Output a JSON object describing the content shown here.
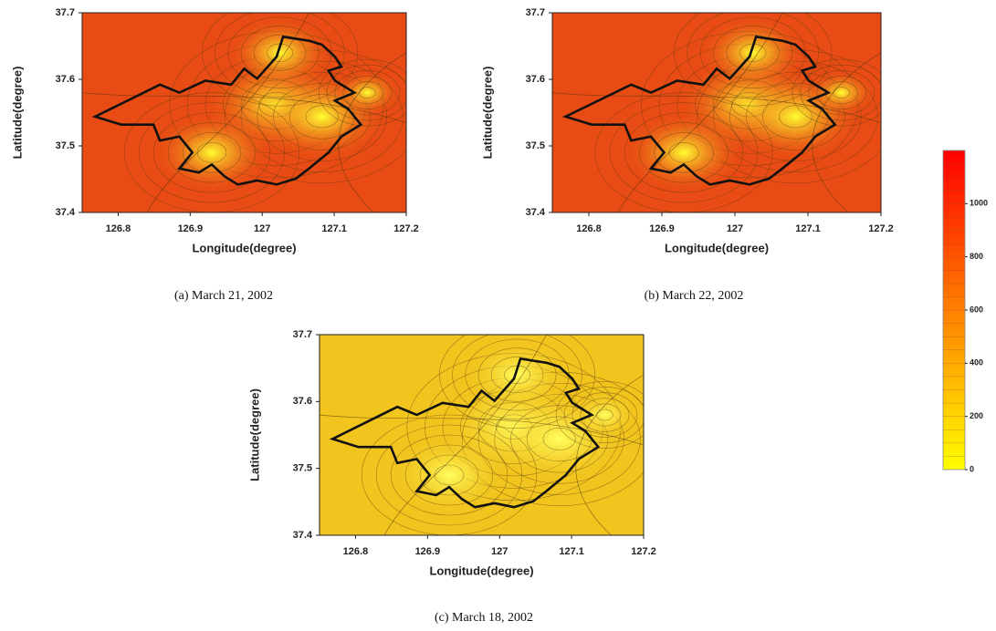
{
  "chart_data": [
    {
      "type": "contour",
      "title": "(a) March 21, 2002",
      "x_label": "Longitude(degree)",
      "y_label": "Latitude(degree)",
      "xlim": [
        126.75,
        127.2
      ],
      "xticks": [
        126.8,
        126.9,
        127,
        127.1,
        127.2
      ],
      "ylim": [
        37.4,
        37.7
      ],
      "yticks": [
        37.4,
        37.5,
        37.6,
        37.7
      ],
      "color": "#e84c14",
      "hot_color": "#ffff30"
    },
    {
      "type": "contour",
      "title": "(b) March 22, 2002",
      "x_label": "Longitude(degree)",
      "y_label": "Latitude(degree)",
      "xlim": [
        126.75,
        127.2
      ],
      "xticks": [
        126.8,
        126.9,
        127,
        127.1,
        127.2
      ],
      "ylim": [
        37.4,
        37.7
      ],
      "yticks": [
        37.4,
        37.5,
        37.6,
        37.7
      ],
      "color": "#e84c14",
      "hot_color": "#ffff30"
    },
    {
      "type": "contour",
      "title": "(c) March 18, 2002",
      "x_label": "Longitude(degree)",
      "y_label": "Latitude(degree)",
      "xlim": [
        126.75,
        127.2
      ],
      "xticks": [
        126.8,
        126.9,
        127,
        127.1,
        127.2
      ],
      "ylim": [
        37.4,
        37.7
      ],
      "yticks": [
        37.4,
        37.5,
        37.6,
        37.7
      ],
      "color": "#f2c41e",
      "hot_color": "#ffff60"
    },
    {
      "type": "colorbar",
      "ylim": [
        0,
        1200
      ],
      "yticks": [
        0,
        200,
        400,
        600,
        800,
        1000
      ],
      "colors": [
        "#ffff00",
        "#ff0000"
      ]
    }
  ]
}
